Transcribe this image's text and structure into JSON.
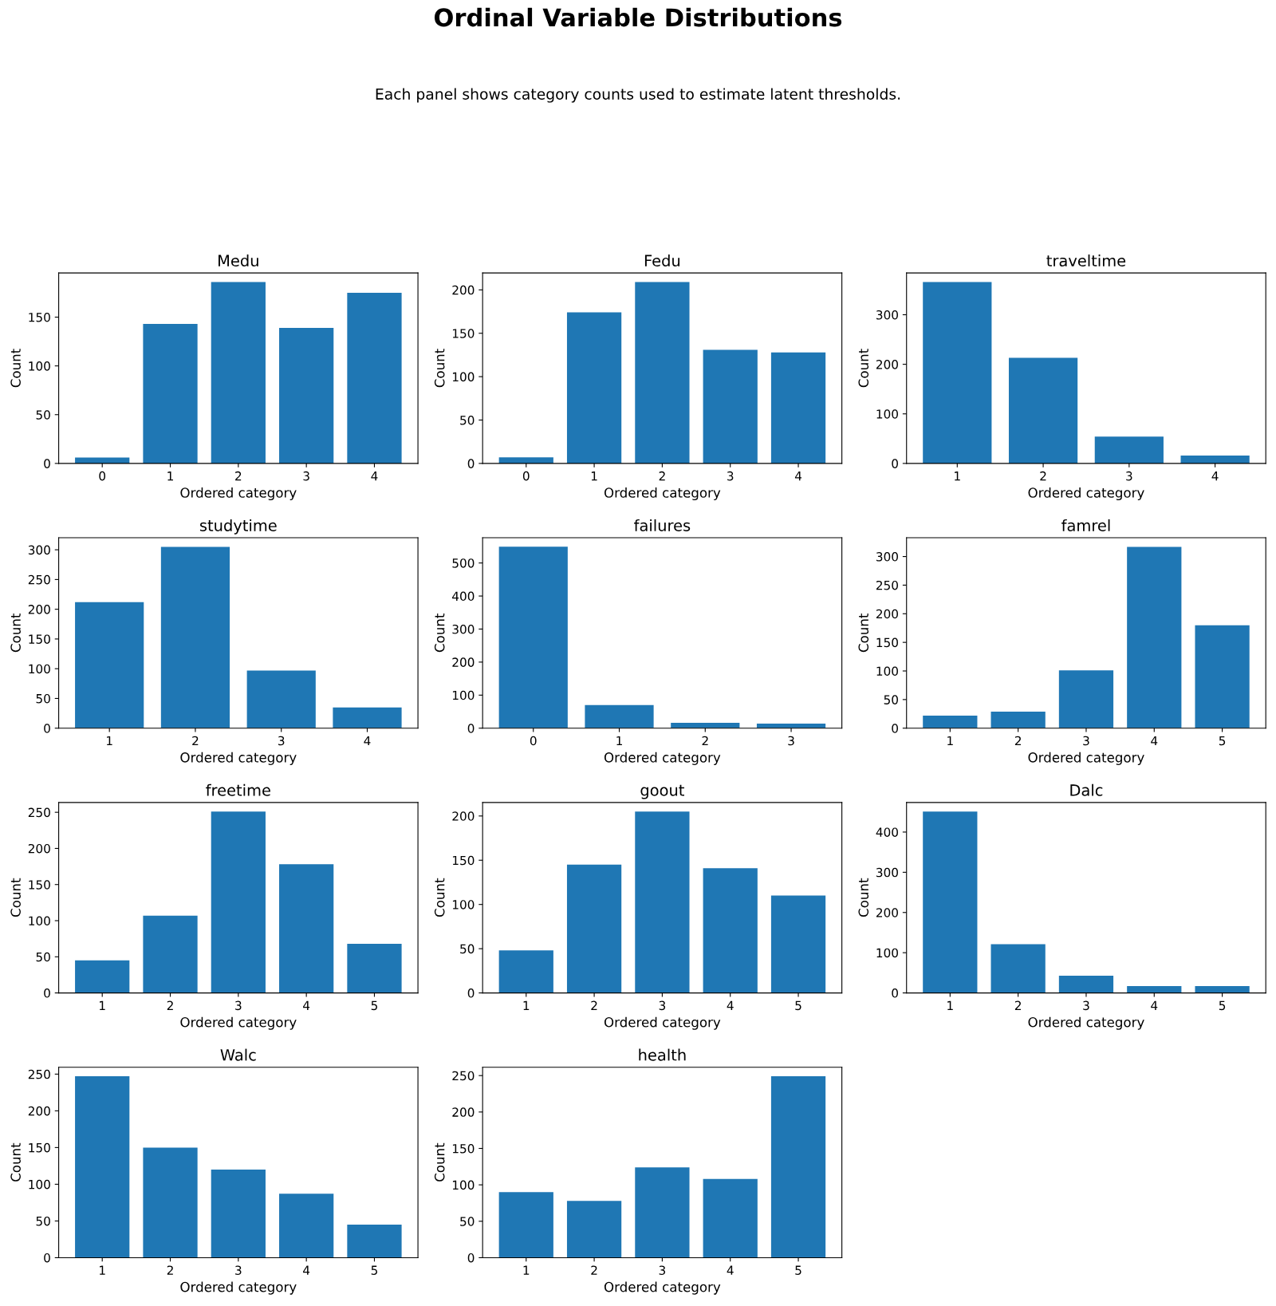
{
  "chart_data": [
    {
      "type": "other",
      "title": "Ordinal Variable Distributions",
      "subtitle": "Each panel shows category counts used to estimate latent thresholds."
    },
    {
      "type": "bar",
      "title": "Medu",
      "xlabel": "Ordered category",
      "ylabel": "Count",
      "categories": [
        "0",
        "1",
        "2",
        "3",
        "4"
      ],
      "values": [
        6,
        143,
        186,
        139,
        175
      ],
      "color": "#1f77b4",
      "ylim": [
        0,
        195.3
      ],
      "yticks": [
        0,
        50,
        100,
        150
      ]
    },
    {
      "type": "bar",
      "title": "Fedu",
      "xlabel": "Ordered category",
      "ylabel": "Count",
      "categories": [
        "0",
        "1",
        "2",
        "3",
        "4"
      ],
      "values": [
        7,
        174,
        209,
        131,
        128
      ],
      "color": "#1f77b4",
      "ylim": [
        0,
        219.5
      ],
      "yticks": [
        0,
        50,
        100,
        150,
        200
      ]
    },
    {
      "type": "bar",
      "title": "traveltime",
      "xlabel": "Ordered category",
      "ylabel": "Count",
      "categories": [
        "1",
        "2",
        "3",
        "4"
      ],
      "values": [
        366,
        213,
        54,
        16
      ],
      "color": "#1f77b4",
      "ylim": [
        0,
        384.3
      ],
      "yticks": [
        0,
        100,
        200,
        300
      ]
    },
    {
      "type": "bar",
      "title": "studytime",
      "xlabel": "Ordered category",
      "ylabel": "Count",
      "categories": [
        "1",
        "2",
        "3",
        "4"
      ],
      "values": [
        212,
        305,
        97,
        35
      ],
      "color": "#1f77b4",
      "ylim": [
        0,
        320.3
      ],
      "yticks": [
        0,
        50,
        100,
        150,
        200,
        250,
        300
      ]
    },
    {
      "type": "bar",
      "title": "failures",
      "xlabel": "Ordered category",
      "ylabel": "Count",
      "categories": [
        "0",
        "1",
        "2",
        "3"
      ],
      "values": [
        549,
        70,
        16,
        14
      ],
      "color": "#1f77b4",
      "ylim": [
        0,
        576.5
      ],
      "yticks": [
        0,
        100,
        200,
        300,
        400,
        500
      ]
    },
    {
      "type": "bar",
      "title": "famrel",
      "xlabel": "Ordered category",
      "ylabel": "Count",
      "categories": [
        "1",
        "2",
        "3",
        "4",
        "5"
      ],
      "values": [
        22,
        29,
        101,
        317,
        180
      ],
      "color": "#1f77b4",
      "ylim": [
        0,
        332.9
      ],
      "yticks": [
        0,
        50,
        100,
        150,
        200,
        250,
        300
      ]
    },
    {
      "type": "bar",
      "title": "freetime",
      "xlabel": "Ordered category",
      "ylabel": "Count",
      "categories": [
        "1",
        "2",
        "3",
        "4",
        "5"
      ],
      "values": [
        45,
        107,
        251,
        178,
        68
      ],
      "color": "#1f77b4",
      "ylim": [
        0,
        263.6
      ],
      "yticks": [
        0,
        50,
        100,
        150,
        200,
        250
      ]
    },
    {
      "type": "bar",
      "title": "goout",
      "xlabel": "Ordered category",
      "ylabel": "Count",
      "categories": [
        "1",
        "2",
        "3",
        "4",
        "5"
      ],
      "values": [
        48,
        145,
        205,
        141,
        110
      ],
      "color": "#1f77b4",
      "ylim": [
        0,
        215.3
      ],
      "yticks": [
        0,
        50,
        100,
        150,
        200
      ]
    },
    {
      "type": "bar",
      "title": "Dalc",
      "xlabel": "Ordered category",
      "ylabel": "Count",
      "categories": [
        "1",
        "2",
        "3",
        "4",
        "5"
      ],
      "values": [
        451,
        121,
        43,
        17,
        17
      ],
      "color": "#1f77b4",
      "ylim": [
        0,
        473.6
      ],
      "yticks": [
        0,
        100,
        200,
        300,
        400
      ]
    },
    {
      "type": "bar",
      "title": "Walc",
      "xlabel": "Ordered category",
      "ylabel": "Count",
      "categories": [
        "1",
        "2",
        "3",
        "4",
        "5"
      ],
      "values": [
        247,
        150,
        120,
        87,
        45
      ],
      "color": "#1f77b4",
      "ylim": [
        0,
        259.4
      ],
      "yticks": [
        0,
        50,
        100,
        150,
        200,
        250
      ]
    },
    {
      "type": "bar",
      "title": "health",
      "xlabel": "Ordered category",
      "ylabel": "Count",
      "categories": [
        "1",
        "2",
        "3",
        "4",
        "5"
      ],
      "values": [
        90,
        78,
        124,
        108,
        249
      ],
      "color": "#1f77b4",
      "ylim": [
        0,
        261.5
      ],
      "yticks": [
        0,
        50,
        100,
        150,
        200,
        250
      ]
    }
  ]
}
